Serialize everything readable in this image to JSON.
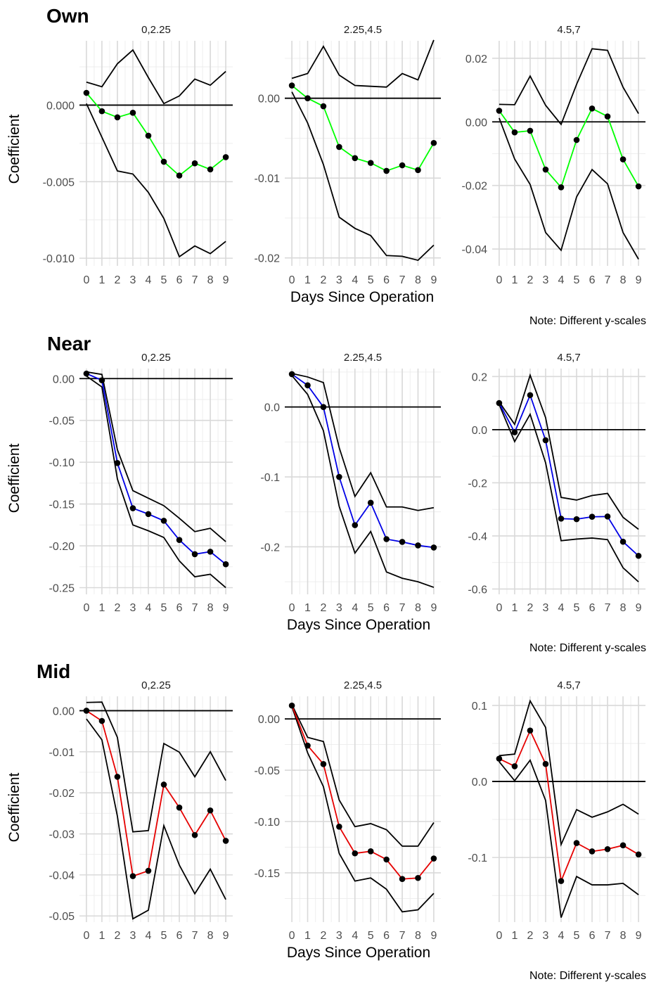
{
  "figure": {
    "x_axis_label": "Days Since Operation",
    "y_axis_label": "Coefficient",
    "note": "Note: Different y-scales"
  },
  "chart_data": [
    {
      "type": "line",
      "row": "Own",
      "title": "0,2.25",
      "line_color": "#00ff00",
      "x": [
        0,
        1,
        2,
        3,
        4,
        5,
        6,
        7,
        8,
        9
      ],
      "ylim": [
        -0.0105,
        0.0042
      ],
      "yticks": [
        -0.01,
        -0.005,
        0.0
      ],
      "ytick_labels": [
        "-0.010",
        "-0.005",
        "0.000"
      ],
      "series": [
        {
          "role": "estimate",
          "values": [
            0.0008,
            -0.0004,
            -0.0008,
            -0.0005,
            -0.002,
            -0.0037,
            -0.0046,
            -0.0038,
            -0.0042,
            -0.0034
          ]
        },
        {
          "role": "upper",
          "values": [
            0.0015,
            0.0012,
            0.0027,
            0.0036,
            0.0018,
            0.0001,
            0.0006,
            0.0017,
            0.0013,
            0.0022
          ]
        },
        {
          "role": "lower",
          "values": [
            0.0001,
            -0.0021,
            -0.0043,
            -0.0045,
            -0.0057,
            -0.0074,
            -0.0099,
            -0.0092,
            -0.0097,
            -0.0089
          ]
        }
      ]
    },
    {
      "type": "line",
      "row": "Own",
      "title": "2.25,4.5",
      "line_color": "#00ff00",
      "x": [
        0,
        1,
        2,
        3,
        4,
        5,
        6,
        7,
        8,
        9
      ],
      "ylim": [
        -0.021,
        0.0072
      ],
      "yticks": [
        -0.02,
        -0.01,
        0.0
      ],
      "ytick_labels": [
        "-0.02",
        "-0.01",
        "0.00"
      ],
      "series": [
        {
          "role": "estimate",
          "values": [
            0.0016,
            0.0,
            -0.001,
            -0.0061,
            -0.0075,
            -0.0081,
            -0.0091,
            -0.0084,
            -0.009,
            -0.0056
          ]
        },
        {
          "role": "upper",
          "values": [
            0.0025,
            0.0031,
            0.0065,
            0.0029,
            0.0016,
            0.0015,
            0.0014,
            0.0031,
            0.0023,
            0.0073
          ]
        },
        {
          "role": "lower",
          "values": [
            0.0008,
            -0.0031,
            -0.0083,
            -0.0149,
            -0.0163,
            -0.0172,
            -0.0197,
            -0.0198,
            -0.0203,
            -0.0184
          ]
        }
      ]
    },
    {
      "type": "line",
      "row": "Own",
      "title": "4.5,7",
      "line_color": "#00ff00",
      "x": [
        0,
        1,
        2,
        3,
        4,
        5,
        6,
        7,
        8,
        9
      ],
      "ylim": [
        -0.0453,
        0.0255
      ],
      "yticks": [
        -0.04,
        -0.02,
        0.0,
        0.02
      ],
      "ytick_labels": [
        "-0.04",
        "-0.02",
        "0.00",
        "0.02"
      ],
      "series": [
        {
          "role": "estimate",
          "values": [
            0.0035,
            -0.0033,
            -0.0028,
            -0.015,
            -0.0206,
            -0.0057,
            0.0042,
            0.0017,
            -0.0118,
            -0.0203
          ]
        },
        {
          "role": "upper",
          "values": [
            0.0055,
            0.0054,
            0.0144,
            0.0052,
            -0.0008,
            0.0118,
            0.023,
            0.0225,
            0.0109,
            0.0026
          ]
        },
        {
          "role": "lower",
          "values": [
            0.0012,
            -0.0117,
            -0.0197,
            -0.0348,
            -0.0404,
            -0.0236,
            -0.015,
            -0.0195,
            -0.0348,
            -0.0432
          ]
        }
      ]
    },
    {
      "type": "line",
      "row": "Near",
      "title": "0,2.25",
      "line_color": "#0000e6",
      "x": [
        0,
        1,
        2,
        3,
        4,
        5,
        6,
        7,
        8,
        9
      ],
      "ylim": [
        -0.258,
        0.012
      ],
      "yticks": [
        -0.25,
        -0.2,
        -0.15,
        -0.1,
        -0.05,
        0.0
      ],
      "ytick_labels": [
        "-0.25",
        "-0.20",
        "-0.15",
        "-0.10",
        "-0.05",
        "0.00"
      ],
      "series": [
        {
          "role": "estimate",
          "values": [
            0.006,
            -0.002,
            -0.101,
            -0.155,
            -0.162,
            -0.17,
            -0.193,
            -0.21,
            -0.207,
            -0.222
          ]
        },
        {
          "role": "upper",
          "values": [
            0.008,
            0.005,
            -0.085,
            -0.134,
            -0.143,
            -0.152,
            -0.167,
            -0.183,
            -0.179,
            -0.195
          ]
        },
        {
          "role": "lower",
          "values": [
            0.003,
            -0.01,
            -0.12,
            -0.175,
            -0.182,
            -0.19,
            -0.218,
            -0.237,
            -0.234,
            -0.25
          ]
        }
      ]
    },
    {
      "type": "line",
      "row": "Near",
      "title": "2.25,4.5",
      "line_color": "#0000e6",
      "x": [
        0,
        1,
        2,
        3,
        4,
        5,
        6,
        7,
        8,
        9
      ],
      "ylim": [
        -0.268,
        0.055
      ],
      "yticks": [
        -0.2,
        -0.1,
        0.0
      ],
      "ytick_labels": [
        "-0.2",
        "-0.1",
        "0.0"
      ],
      "series": [
        {
          "role": "estimate",
          "values": [
            0.047,
            0.031,
            0.0,
            -0.1,
            -0.169,
            -0.137,
            -0.189,
            -0.193,
            -0.198,
            -0.201
          ]
        },
        {
          "role": "upper",
          "values": [
            0.048,
            0.043,
            0.035,
            -0.058,
            -0.128,
            -0.094,
            -0.143,
            -0.143,
            -0.148,
            -0.144
          ]
        },
        {
          "role": "lower",
          "values": [
            0.045,
            0.018,
            -0.034,
            -0.142,
            -0.209,
            -0.178,
            -0.236,
            -0.245,
            -0.25,
            -0.258
          ]
        }
      ]
    },
    {
      "type": "line",
      "row": "Near",
      "title": "4.5,7",
      "line_color": "#0000e6",
      "x": [
        0,
        1,
        2,
        3,
        4,
        5,
        6,
        7,
        8,
        9
      ],
      "ylim": [
        -0.62,
        0.23
      ],
      "yticks": [
        -0.6,
        -0.4,
        -0.2,
        0.0,
        0.2
      ],
      "ytick_labels": [
        "-0.6",
        "-0.4",
        "-0.2",
        "0.0",
        "0.2"
      ],
      "series": [
        {
          "role": "estimate",
          "values": [
            0.1,
            -0.01,
            0.13,
            -0.04,
            -0.335,
            -0.337,
            -0.328,
            -0.327,
            -0.422,
            -0.475
          ]
        },
        {
          "role": "upper",
          "values": [
            0.105,
            0.02,
            0.205,
            0.045,
            -0.255,
            -0.265,
            -0.248,
            -0.24,
            -0.33,
            -0.375
          ]
        },
        {
          "role": "lower",
          "values": [
            0.095,
            -0.045,
            0.058,
            -0.125,
            -0.418,
            -0.412,
            -0.408,
            -0.414,
            -0.52,
            -0.573
          ]
        }
      ]
    },
    {
      "type": "line",
      "row": "Mid",
      "title": "0,2.25",
      "line_color": "#e60000",
      "x": [
        0,
        1,
        2,
        3,
        4,
        5,
        6,
        7,
        8,
        9
      ],
      "ylim": [
        -0.0515,
        0.0035
      ],
      "yticks": [
        -0.05,
        -0.04,
        -0.03,
        -0.02,
        -0.01,
        0.0
      ],
      "ytick_labels": [
        "-0.05",
        "-0.04",
        "-0.03",
        "-0.02",
        "-0.01",
        "0.00"
      ],
      "series": [
        {
          "role": "estimate",
          "values": [
            0.0,
            -0.0025,
            -0.0161,
            -0.0403,
            -0.039,
            -0.018,
            -0.0236,
            -0.0303,
            -0.0243,
            -0.0317
          ]
        },
        {
          "role": "upper",
          "values": [
            0.002,
            0.0021,
            -0.0065,
            -0.0295,
            -0.0292,
            -0.008,
            -0.0101,
            -0.0161,
            -0.01,
            -0.017
          ]
        },
        {
          "role": "lower",
          "values": [
            -0.002,
            -0.0071,
            -0.0257,
            -0.0507,
            -0.0486,
            -0.028,
            -0.0376,
            -0.0446,
            -0.0386,
            -0.046
          ]
        }
      ]
    },
    {
      "type": "line",
      "row": "Mid",
      "title": "2.25,4.5",
      "line_color": "#e60000",
      "x": [
        0,
        1,
        2,
        3,
        4,
        5,
        6,
        7,
        8,
        9
      ],
      "ylim": [
        -0.198,
        0.022
      ],
      "yticks": [
        -0.15,
        -0.1,
        -0.05,
        0.0
      ],
      "ytick_labels": [
        "-0.15",
        "-0.10",
        "-0.05",
        "0.00"
      ],
      "series": [
        {
          "role": "estimate",
          "values": [
            0.013,
            -0.026,
            -0.044,
            -0.105,
            -0.131,
            -0.129,
            -0.137,
            -0.156,
            -0.155,
            -0.136
          ]
        },
        {
          "role": "upper",
          "values": [
            0.014,
            -0.018,
            -0.022,
            -0.079,
            -0.105,
            -0.102,
            -0.108,
            -0.124,
            -0.124,
            -0.101
          ]
        },
        {
          "role": "lower",
          "values": [
            0.012,
            -0.033,
            -0.066,
            -0.131,
            -0.158,
            -0.155,
            -0.166,
            -0.188,
            -0.186,
            -0.17
          ]
        }
      ]
    },
    {
      "type": "line",
      "row": "Mid",
      "title": "4.5,7",
      "line_color": "#e60000",
      "x": [
        0,
        1,
        2,
        3,
        4,
        5,
        6,
        7,
        8,
        9
      ],
      "ylim": [
        -0.185,
        0.112
      ],
      "yticks": [
        -0.1,
        0.0,
        0.1
      ],
      "ytick_labels": [
        "-0.1",
        "0.0",
        "0.1"
      ],
      "series": [
        {
          "role": "estimate",
          "values": [
            0.03,
            0.02,
            0.067,
            0.023,
            -0.131,
            -0.081,
            -0.092,
            -0.089,
            -0.084,
            -0.096
          ]
        },
        {
          "role": "upper",
          "values": [
            0.034,
            0.036,
            0.106,
            0.071,
            -0.083,
            -0.037,
            -0.047,
            -0.04,
            -0.03,
            -0.043
          ]
        },
        {
          "role": "lower",
          "values": [
            0.026,
            0.001,
            0.028,
            -0.025,
            -0.179,
            -0.125,
            -0.136,
            -0.136,
            -0.134,
            -0.149
          ]
        }
      ]
    }
  ]
}
